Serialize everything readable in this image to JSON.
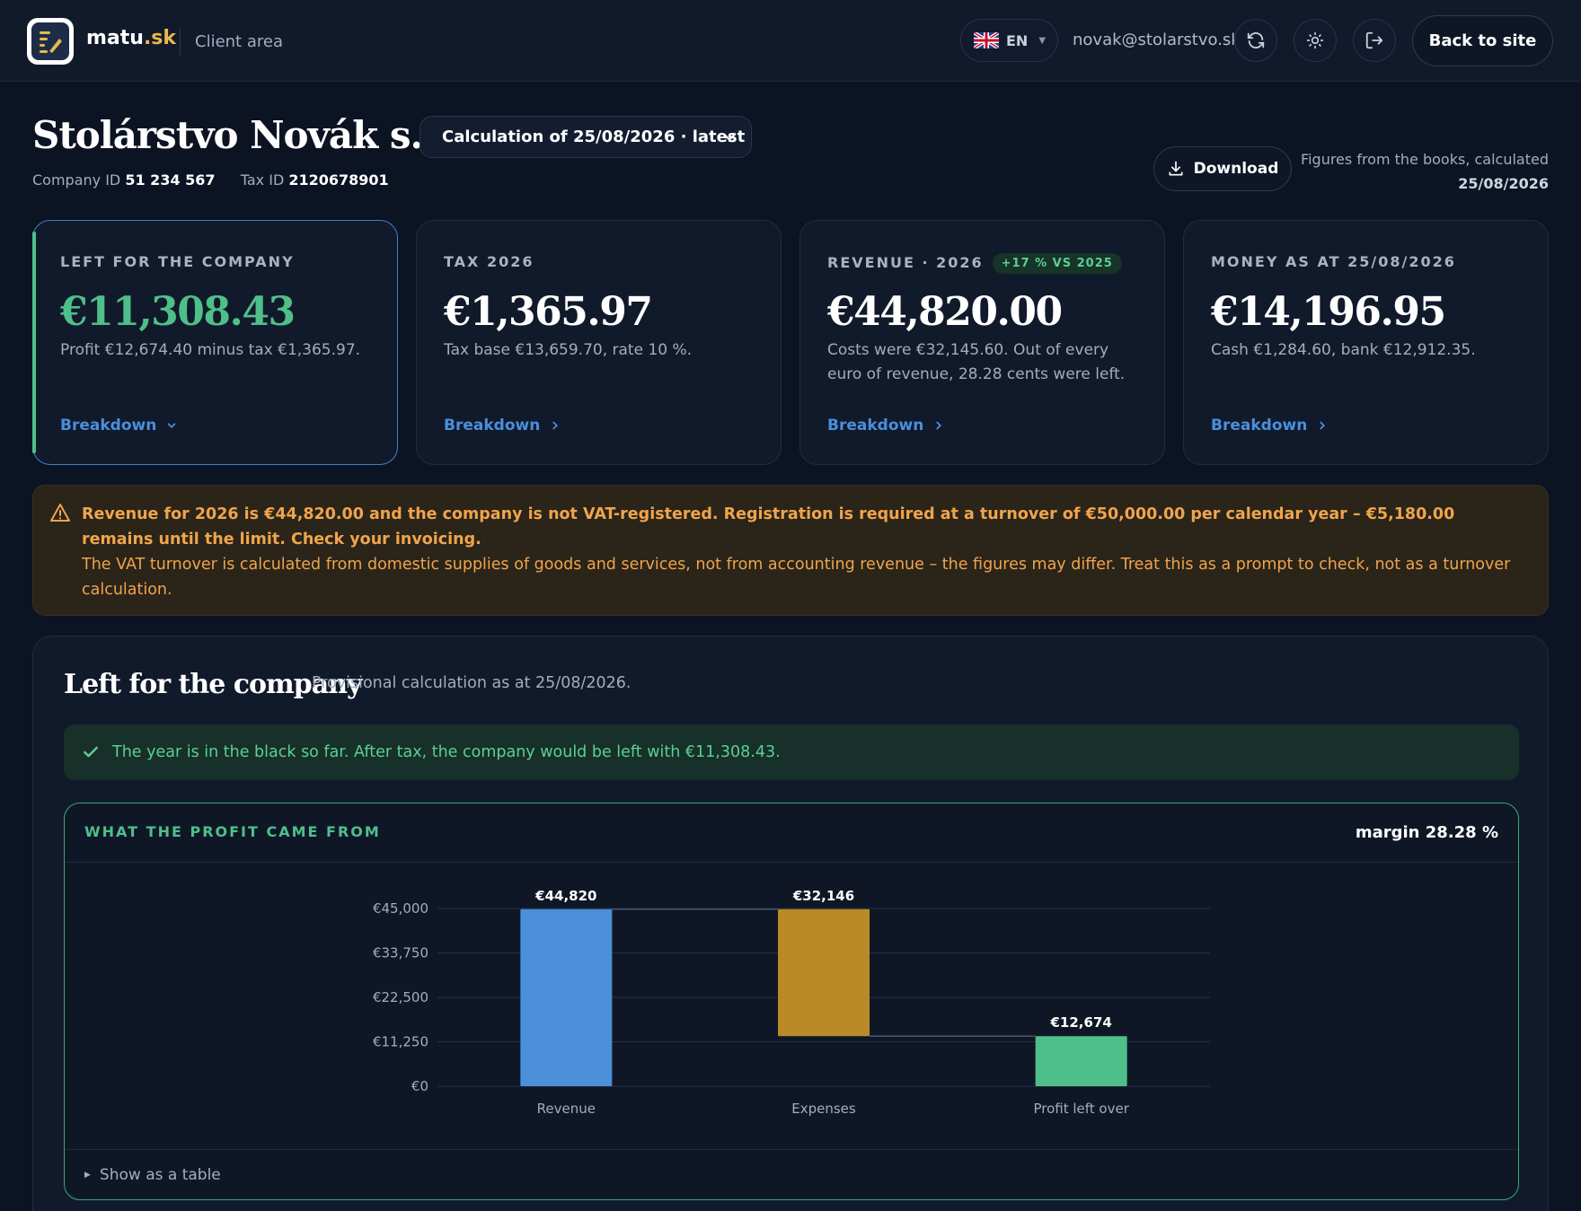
{
  "header": {
    "brand_name": "matu",
    "brand_tld": ".sk",
    "area_label": "Client area",
    "language": "EN",
    "email": "novak@stolarstvo.sk",
    "back_label": "Back to site"
  },
  "company": {
    "name": "Stolárstvo Novák s. r. o.",
    "calculation_select": "Calculation of 25/08/2026 · latest",
    "company_id_label": "Company ID",
    "company_id": "51 234 567",
    "tax_id_label": "Tax ID",
    "tax_id": "2120678901",
    "download_label": "Download",
    "figures_note": "Figures from the books, calculated",
    "figures_date": "25/08/2026"
  },
  "cards": [
    {
      "label": "Left for the company",
      "value": "€11,308.43",
      "desc": "Profit €12,674.40 minus tax €1,365.97.",
      "link": "Breakdown",
      "badge": ""
    },
    {
      "label": "Tax 2026",
      "value": "€1,365.97",
      "desc": "Tax base €13,659.70, rate 10 %.",
      "link": "Breakdown",
      "badge": ""
    },
    {
      "label": "Revenue · 2026",
      "value": "€44,820.00",
      "desc": "Costs were €32,145.60. Out of every euro of revenue, 28.28 cents were left.",
      "link": "Breakdown",
      "badge": "+17 % vs 2025"
    },
    {
      "label": "Money as at 25/08/2026",
      "value": "€14,196.95",
      "desc": "Cash €1,284.60, bank €12,912.35.",
      "link": "Breakdown",
      "badge": ""
    }
  ],
  "warning": {
    "bold": "Revenue for 2026 is €44,820.00 and the company is not VAT-registered. Registration is required at a turnover of €50,000.00 per calendar year – €5,180.00 remains until the limit. Check your invoicing.",
    "text": "The VAT turnover is calculated from domestic supplies of goods and services, not from accounting revenue – the figures may differ. Treat this as a prompt to check, not as a turnover calculation."
  },
  "panel": {
    "title": "Left for the company",
    "subtitle": "Provisional calculation as at 25/08/2026.",
    "ok_message": "The year is in the black so far. After tax, the company would be left with €11,308.43.",
    "chart_kicker": "What the profit came from",
    "margin": "margin 28.28 %",
    "show_table": "Show as a table"
  },
  "colors": {
    "revenue": "#4a8fd8",
    "expenses": "#b98a26",
    "profit": "#4fbf8a"
  },
  "chart_data": {
    "type": "bar",
    "subtype": "waterfall",
    "categories": [
      "Revenue",
      "Expenses",
      "Profit left over"
    ],
    "values": [
      44820,
      32146,
      12674
    ],
    "data_labels": [
      "€44,820",
      "€32,146",
      "€12,674"
    ],
    "ylim": [
      0,
      45000
    ],
    "yticks": [
      0,
      11250,
      22500,
      33750,
      45000
    ],
    "ytick_labels": [
      "€0",
      "€11,250",
      "€22,500",
      "€33,750",
      "€45,000"
    ],
    "grid": true
  }
}
